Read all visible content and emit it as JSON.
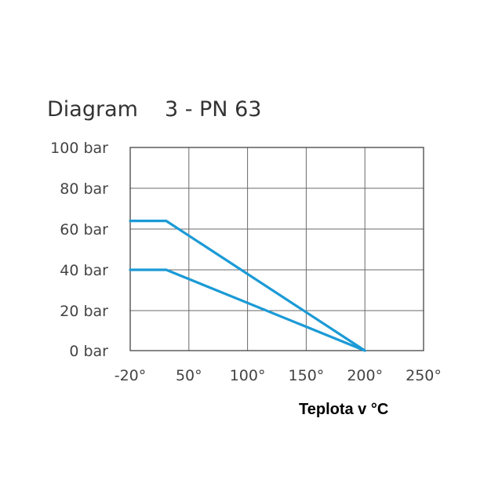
{
  "chart_data": {
    "type": "line",
    "title": "Diagram",
    "subtitle": "3 - PN 63",
    "xlabel": "Teplota v °C",
    "ylabel": "",
    "x_ticks": [
      "-20°",
      "50°",
      "100°",
      "150°",
      "200°",
      "250°"
    ],
    "y_ticks": [
      "0 bar",
      "20 bar",
      "40 bar",
      "60 bar",
      "80 bar",
      "100 bar"
    ],
    "y_values": [
      0,
      20,
      40,
      60,
      80,
      100
    ],
    "ylim": [
      0,
      100
    ],
    "grid": true,
    "line_color": "#1b9ad6",
    "series": [
      {
        "points": [
          [
            -20,
            64
          ],
          [
            23,
            64
          ],
          [
            200,
            0
          ]
        ]
      },
      {
        "points": [
          [
            -20,
            40
          ],
          [
            23,
            40
          ],
          [
            200,
            0
          ]
        ]
      }
    ]
  }
}
